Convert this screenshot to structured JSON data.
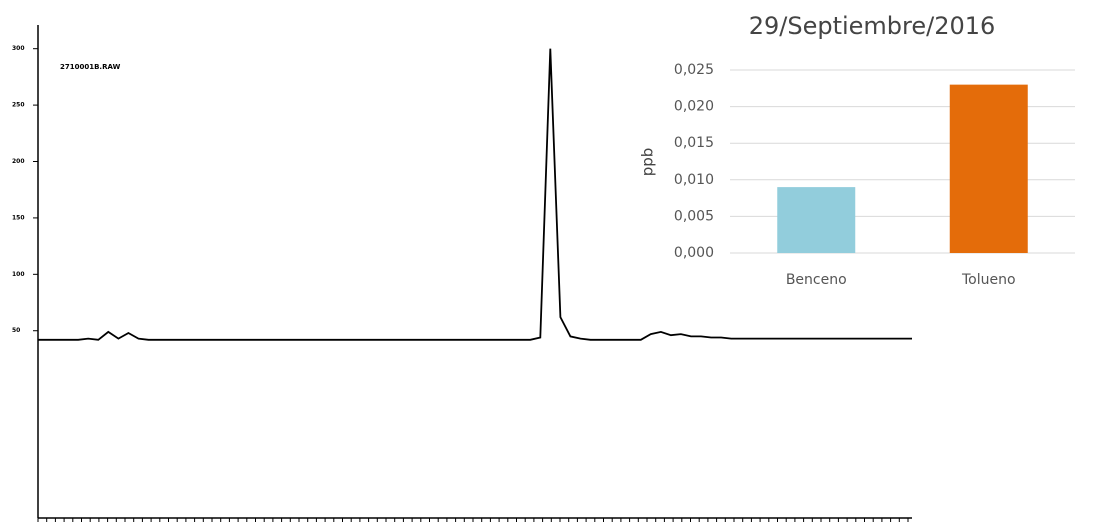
{
  "chart_data": [
    {
      "type": "line",
      "annotation": "2710001B.RAW",
      "color": "#000000",
      "values": [
        42,
        42,
        42,
        42,
        42,
        43,
        42,
        49,
        43,
        48,
        43,
        42,
        42,
        42,
        42,
        42,
        42,
        42,
        42,
        42,
        42,
        42,
        42,
        42,
        42,
        42,
        42,
        42,
        42,
        42,
        42,
        42,
        42,
        42,
        42,
        42,
        42,
        42,
        42,
        42,
        42,
        42,
        42,
        42,
        42,
        42,
        42,
        42,
        42,
        42,
        44,
        300,
        62,
        45,
        43,
        42,
        42,
        42,
        42,
        42,
        42,
        47,
        49,
        46,
        47,
        45,
        45,
        44,
        44,
        43,
        43,
        43,
        43,
        43,
        43,
        43,
        43,
        43,
        43,
        43,
        43,
        43,
        43,
        43,
        43,
        43,
        43,
        43
      ],
      "ylim": [
        -116,
        321
      ],
      "yticks": [
        50,
        100,
        150,
        200,
        250,
        300
      ]
    },
    {
      "type": "bar",
      "title": "29/Septiembre/2016",
      "y_label": "ppb",
      "categories": [
        "Benceno",
        "Tolueno"
      ],
      "values": [
        0.009,
        0.023
      ],
      "colors": [
        "#92cddc",
        "#e46c0a"
      ],
      "ylim": [
        0,
        0.025
      ],
      "yticks": [
        {
          "value": 0,
          "label": "0,000"
        },
        {
          "value": 0.005,
          "label": "0,005"
        },
        {
          "value": 0.01,
          "label": "0,010"
        },
        {
          "value": 0.015,
          "label": "0,015"
        },
        {
          "value": 0.02,
          "label": "0,020"
        },
        {
          "value": 0.025,
          "label": "0,025"
        }
      ],
      "grid": true
    }
  ]
}
